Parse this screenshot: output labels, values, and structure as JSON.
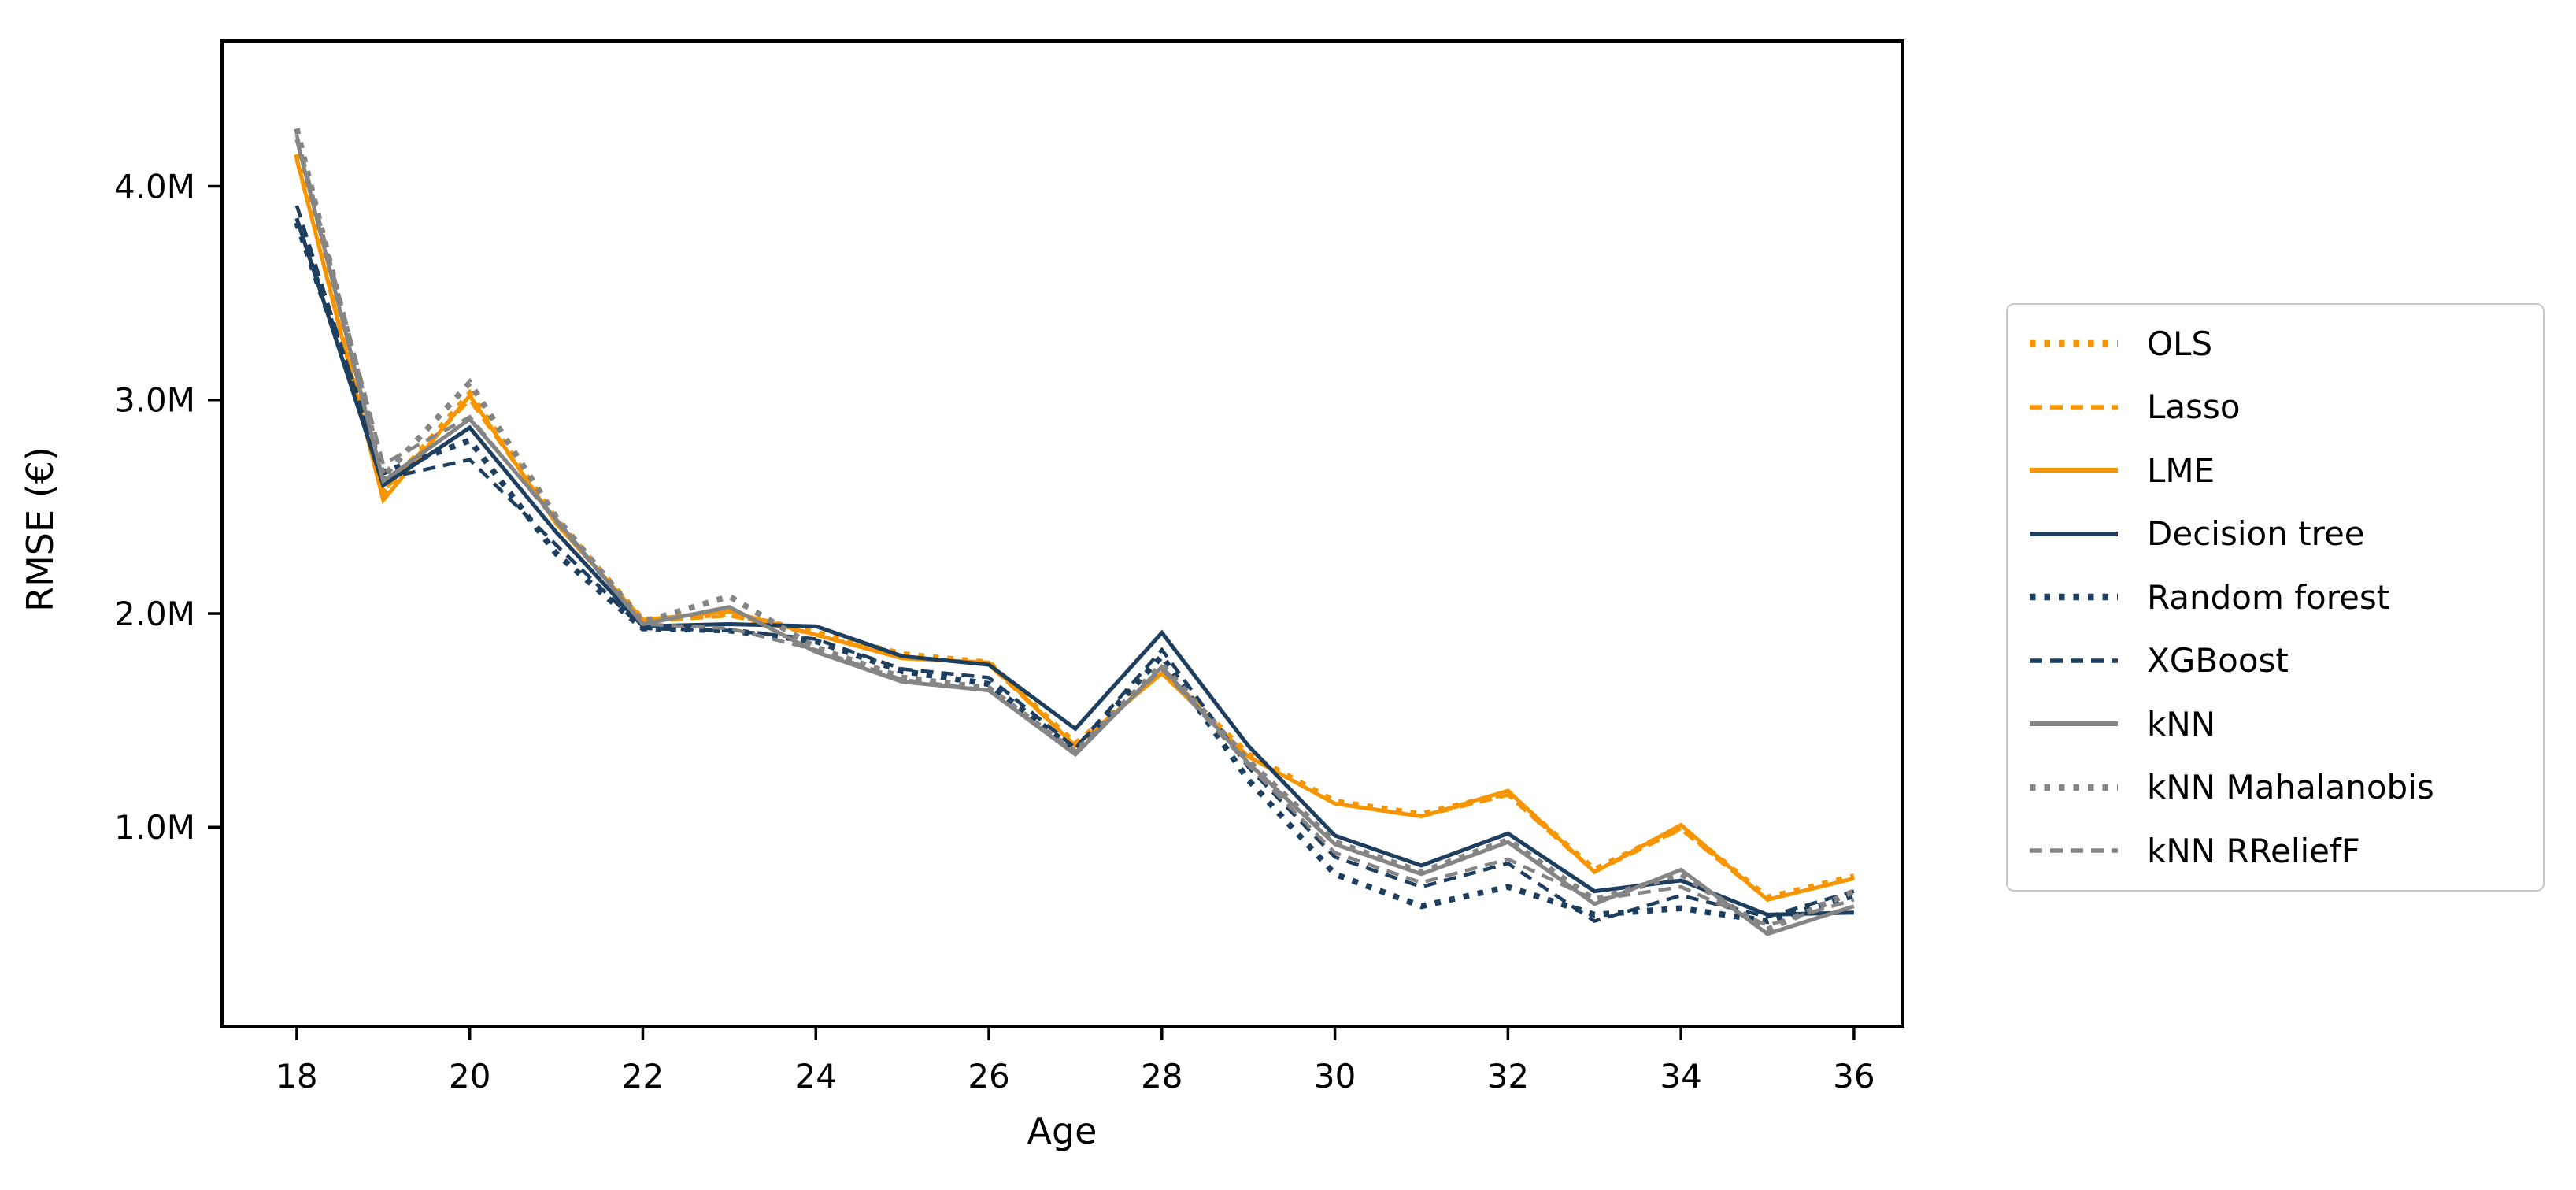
{
  "figure": {
    "xlabel": "Age",
    "ylabel": "RMSE (€)",
    "background": "#ffffff"
  },
  "chart_data": {
    "type": "line",
    "title": "",
    "xlabel": "Age",
    "ylabel": "RMSE (€)",
    "grid": false,
    "legend_position": "right-outside",
    "x": [
      18,
      19,
      20,
      21,
      22,
      23,
      24,
      25,
      26,
      27,
      28,
      29,
      30,
      31,
      32,
      33,
      34,
      35,
      36
    ],
    "xticks": [
      18,
      20,
      22,
      24,
      26,
      28,
      30,
      32,
      34,
      36
    ],
    "yticks": [
      {
        "label": "1.0M",
        "value": 1.0
      },
      {
        "label": "2.0M",
        "value": 2.0
      },
      {
        "label": "3.0M",
        "value": 3.0
      },
      {
        "label": "4.0M",
        "value": 4.0
      }
    ],
    "xlim": [
      17.136,
      36.565
    ],
    "ylim_millions": [
      0.068,
      4.68
    ],
    "units": "millions of €",
    "series": [
      {
        "name": "OLS",
        "color": "#f79500",
        "style": "dotted",
        "values": [
          4.15,
          2.56,
          3.03,
          2.44,
          1.97,
          2.0,
          1.91,
          1.81,
          1.77,
          1.39,
          1.73,
          1.34,
          1.12,
          1.06,
          1.16,
          0.8,
          1.0,
          0.67,
          0.77
        ]
      },
      {
        "name": "Lasso",
        "color": "#f79500",
        "style": "dashed",
        "values": [
          4.12,
          2.57,
          3.0,
          2.43,
          1.96,
          1.99,
          1.9,
          1.8,
          1.76,
          1.38,
          1.72,
          1.33,
          1.11,
          1.05,
          1.15,
          0.79,
          0.99,
          0.66,
          0.76
        ]
      },
      {
        "name": "LME",
        "color": "#f79500",
        "style": "solid",
        "values": [
          4.13,
          2.53,
          3.02,
          2.42,
          1.97,
          2.01,
          1.9,
          1.79,
          1.77,
          1.38,
          1.72,
          1.33,
          1.11,
          1.05,
          1.17,
          0.79,
          1.01,
          0.66,
          0.76
        ]
      },
      {
        "name": "Decision tree",
        "color": "#1d3e5e",
        "style": "solid",
        "values": [
          3.85,
          2.6,
          2.87,
          2.38,
          1.94,
          1.95,
          1.94,
          1.8,
          1.76,
          1.46,
          1.91,
          1.38,
          0.96,
          0.82,
          0.97,
          0.7,
          0.75,
          0.59,
          0.6
        ]
      },
      {
        "name": "Random forest",
        "color": "#1d3e5e",
        "style": "dotted",
        "values": [
          3.83,
          2.66,
          2.81,
          2.28,
          1.93,
          1.92,
          1.87,
          1.73,
          1.67,
          1.36,
          1.8,
          1.22,
          0.78,
          0.63,
          0.72,
          0.59,
          0.62,
          0.56,
          0.68
        ]
      },
      {
        "name": "XGBoost",
        "color": "#1d3e5e",
        "style": "dashed",
        "values": [
          3.91,
          2.63,
          2.72,
          2.32,
          1.93,
          1.92,
          1.88,
          1.74,
          1.7,
          1.37,
          1.83,
          1.28,
          0.86,
          0.72,
          0.83,
          0.56,
          0.68,
          0.58,
          0.7
        ]
      },
      {
        "name": "kNN",
        "color": "#858585",
        "style": "solid",
        "values": [
          4.22,
          2.62,
          2.91,
          2.44,
          1.95,
          2.03,
          1.82,
          1.68,
          1.64,
          1.34,
          1.75,
          1.3,
          0.92,
          0.78,
          0.93,
          0.64,
          0.8,
          0.5,
          0.63
        ]
      },
      {
        "name": "kNN Mahalanobis",
        "color": "#858585",
        "style": "dotted",
        "values": [
          4.27,
          2.64,
          3.08,
          2.45,
          1.96,
          2.08,
          1.84,
          1.7,
          1.65,
          1.35,
          1.76,
          1.31,
          0.93,
          0.79,
          0.94,
          0.66,
          0.78,
          0.52,
          0.7
        ]
      },
      {
        "name": "kNN RReliefF",
        "color": "#858585",
        "style": "dashed",
        "values": [
          4.24,
          2.7,
          2.92,
          2.43,
          1.95,
          1.93,
          1.83,
          1.69,
          1.64,
          1.35,
          1.74,
          1.29,
          0.88,
          0.74,
          0.85,
          0.66,
          0.72,
          0.54,
          0.66
        ]
      }
    ]
  },
  "legend": {
    "items": [
      "OLS",
      "Lasso",
      "LME",
      "Decision tree",
      "Random forest",
      "XGBoost",
      "kNN",
      "kNN Mahalanobis",
      "kNN RReliefF"
    ]
  }
}
